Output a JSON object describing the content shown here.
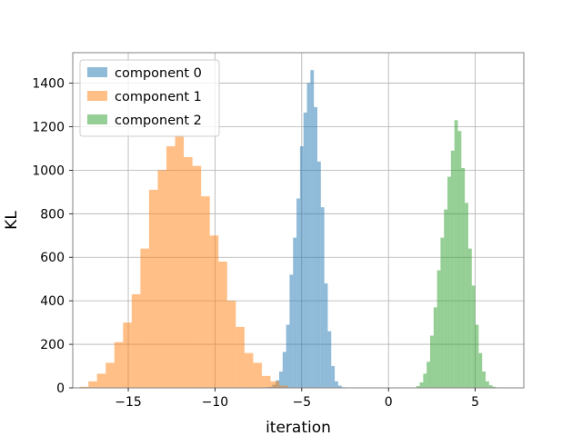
{
  "chart_data": {
    "type": "histogram",
    "title": "",
    "xlabel": "iteration",
    "ylabel": "KL",
    "xlim": [
      -18.2,
      7.8
    ],
    "ylim": [
      0,
      1540
    ],
    "grid": true,
    "legend_position": "top-left",
    "xticks": [
      {
        "value": -15,
        "label": "−15"
      },
      {
        "value": -10,
        "label": "−10"
      },
      {
        "value": -5,
        "label": "−5"
      },
      {
        "value": 0,
        "label": "0"
      },
      {
        "value": 5,
        "label": "5"
      }
    ],
    "yticks": [
      {
        "value": 0,
        "label": "0"
      },
      {
        "value": 200,
        "label": "200"
      },
      {
        "value": 400,
        "label": "400"
      },
      {
        "value": 600,
        "label": "600"
      },
      {
        "value": 800,
        "label": "800"
      },
      {
        "value": 1000,
        "label": "1000"
      },
      {
        "value": 1200,
        "label": "1200"
      },
      {
        "value": 1400,
        "label": "1400"
      }
    ],
    "series": [
      {
        "name": "component 0",
        "color": "#1f77b4",
        "opacity": 0.5,
        "bin_start": -7.1,
        "bin_width": 0.2,
        "counts": [
          3,
          5,
          14,
          35,
          75,
          165,
          290,
          520,
          690,
          870,
          1110,
          1265,
          1400,
          1460,
          1290,
          1040,
          830,
          480,
          260,
          100,
          30,
          10,
          3
        ]
      },
      {
        "name": "component 1",
        "color": "#ff7f0e",
        "opacity": 0.5,
        "bin_start": -17.8,
        "bin_width": 0.5,
        "counts": [
          5,
          30,
          65,
          115,
          210,
          300,
          430,
          640,
          910,
          1000,
          1110,
          1160,
          1060,
          1020,
          880,
          700,
          580,
          400,
          280,
          160,
          115,
          55,
          30,
          10
        ]
      },
      {
        "name": "component 2",
        "color": "#2ca02c",
        "opacity": 0.5,
        "bin_start": 1.6,
        "bin_width": 0.2,
        "counts": [
          8,
          25,
          65,
          120,
          240,
          370,
          540,
          690,
          820,
          970,
          1090,
          1230,
          1180,
          1010,
          850,
          640,
          470,
          290,
          160,
          75,
          30,
          12,
          5
        ]
      }
    ]
  }
}
